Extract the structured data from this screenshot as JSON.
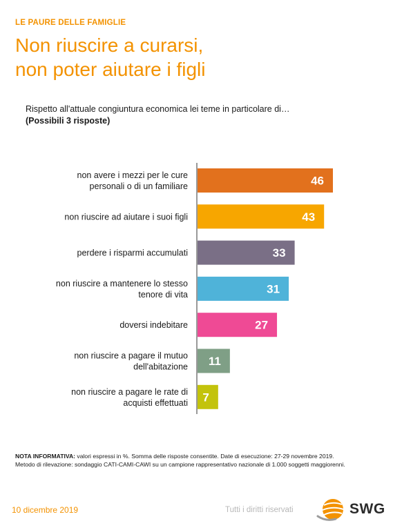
{
  "header": {
    "kicker": "LE PAURE DELLE FAMIGLIE",
    "title_lines": [
      "Non riuscire a curarsi,",
      "non poter aiutare i figli"
    ]
  },
  "question": {
    "text": "Rispetto all'attuale congiuntura economica lei teme in particolare di…",
    "note": "(Possibili 3 risposte)"
  },
  "chart_data": {
    "type": "bar",
    "orientation": "horizontal",
    "categories": [
      [
        "non avere i mezzi per le cure",
        "personali o di un familiare"
      ],
      [
        "non riuscire ad aiutare i suoi figli"
      ],
      [
        "perdere i risparmi accumulati"
      ],
      [
        "non riuscire a mantenere lo stesso",
        "tenore di vita"
      ],
      [
        "doversi indebitare"
      ],
      [
        "non riuscire a pagare il mutuo",
        "dell'abitazione"
      ],
      [
        "non riuscire a pagare le rate di",
        "acquisti effettuati"
      ]
    ],
    "values": [
      46,
      43,
      33,
      31,
      27,
      11,
      7
    ],
    "colors": [
      "#e2711d",
      "#f7a600",
      "#7a6f86",
      "#4fb3d9",
      "#ef4a95",
      "#7f9f86",
      "#c3c30c"
    ],
    "xlim": [
      0,
      50
    ],
    "grid": false,
    "legend": "none"
  },
  "footnote": {
    "label": "NOTA INFORMATIVA:",
    "text": " valori espressi in %. Somma delle risposte consentite. Date di esecuzione: 27-29 novembre 2019.",
    "method": "Metodo di rilevazione: sondaggio CATI-CAMI-CAWI su un campione rappresentativo nazionale di 1.000 soggetti maggiorenni."
  },
  "footer": {
    "date": "10 dicembre 2019",
    "rights": "Tutti i diritti riservati",
    "logo_text": "SWG"
  },
  "colors": {
    "accent": "#f39200",
    "axis": "#333333"
  }
}
